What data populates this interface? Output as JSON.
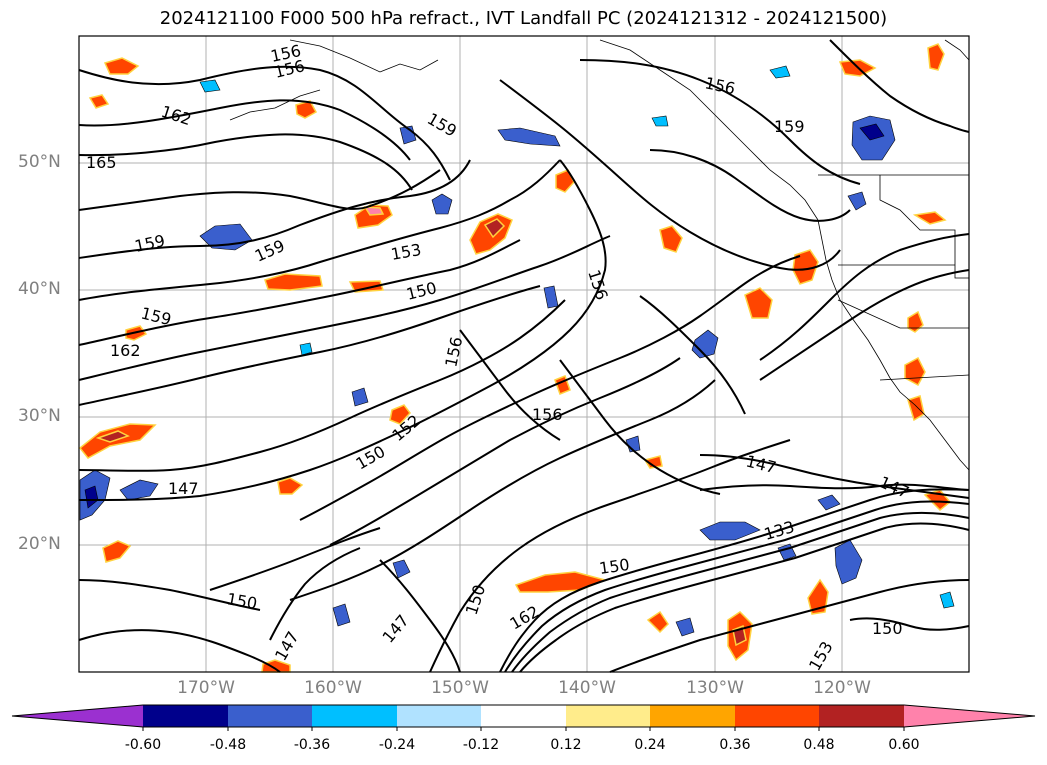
{
  "title": "2024121100 F000 500 hPa refract., IVT Landfall PC (2024121312 - 2024121500)",
  "lat_labels": [
    "50°N",
    "40°N",
    "30°N",
    "20°N"
  ],
  "lon_labels": [
    "170°W",
    "160°W",
    "150°W",
    "140°W",
    "130°W",
    "120°W"
  ],
  "contour_labels": [
    "156",
    "156",
    "162",
    "159",
    "165",
    "156",
    "159",
    "159",
    "159",
    "153",
    "150",
    "159",
    "156",
    "162",
    "156",
    "150",
    "152",
    "156",
    "147",
    "147",
    "150",
    "150",
    "147",
    "147",
    "162",
    "150",
    "133",
    "150",
    "147",
    "153"
  ],
  "colorbar": {
    "tick_labels": [
      "-0.60",
      "-0.48",
      "-0.36",
      "-0.24",
      "-0.12",
      "0.12",
      "0.24",
      "0.36",
      "0.48",
      "0.60"
    ],
    "colors": [
      "#9b30d0",
      "#00008b",
      "#3a5fcd",
      "#00bfff",
      "#b0e2ff",
      "#ffffff",
      "#ffec8b",
      "#ffa500",
      "#ff4500",
      "#b22222",
      "#ff82ab"
    ]
  }
}
